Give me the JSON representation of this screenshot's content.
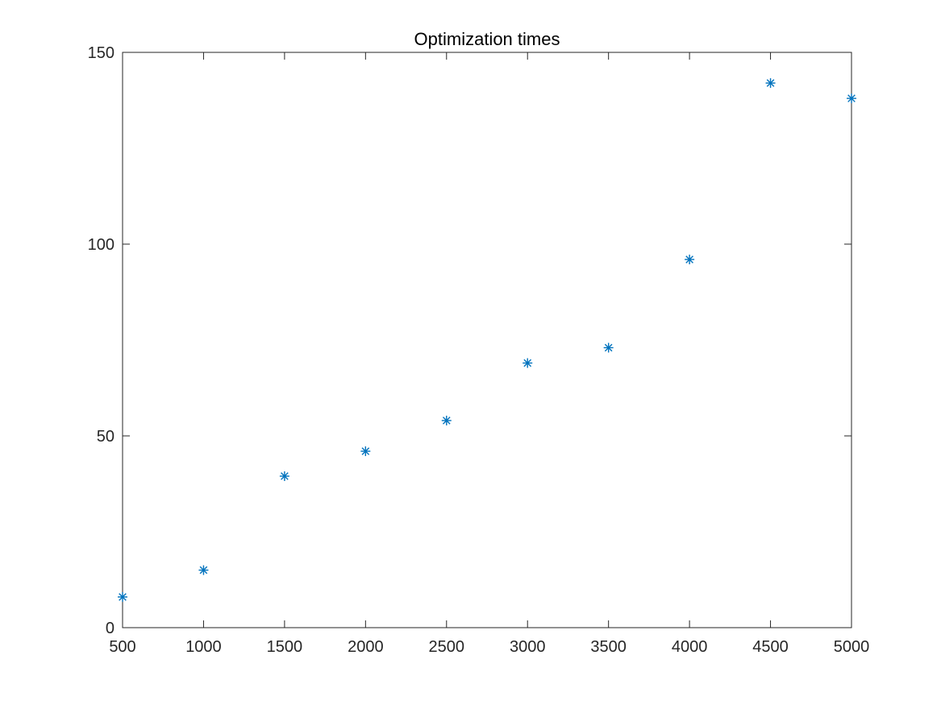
{
  "chart_data": {
    "type": "scatter",
    "title": "Optimization times",
    "xlabel": "",
    "ylabel": "",
    "xlim": [
      500,
      5000
    ],
    "ylim": [
      0,
      150
    ],
    "x_ticks": [
      500,
      1000,
      1500,
      2000,
      2500,
      3000,
      3500,
      4000,
      4500,
      5000
    ],
    "y_ticks": [
      0,
      50,
      100,
      150
    ],
    "grid": false,
    "marker": "asterisk",
    "color": "#0072BD",
    "series": [
      {
        "x": [
          500,
          1000,
          1500,
          2000,
          2500,
          3000,
          3500,
          4000,
          4500,
          5000
        ],
        "y": [
          8,
          15,
          39.5,
          46,
          54,
          69,
          73,
          96,
          142,
          138
        ]
      }
    ]
  }
}
